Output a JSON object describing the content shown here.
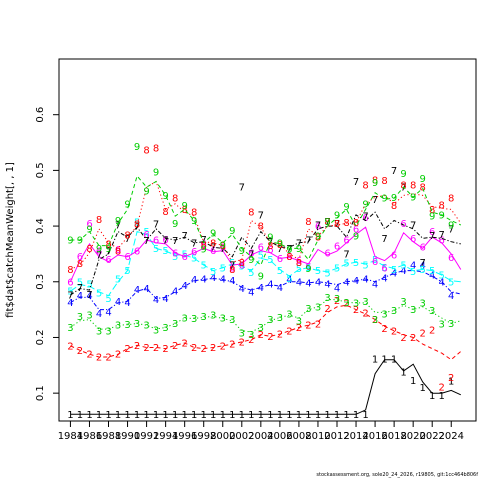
{
  "chart_data": {
    "type": "scatter",
    "title": "",
    "xlabel": "",
    "ylabel": "fit$dat$catchMeanWeight[, , 1]",
    "xlim": [
      1982.8,
      2026.6
    ],
    "ylim": [
      0.05,
      0.7
    ],
    "x_ticks": [
      "1984",
      "1986",
      "1988",
      "1990",
      "1992",
      "1994",
      "1996",
      "1998",
      "2000",
      "2002",
      "2004",
      "2006",
      "2008",
      "2010",
      "2012",
      "2014",
      "2016",
      "2018",
      "2020",
      "2022",
      "2024"
    ],
    "y_ticks": [
      "0.1",
      "0.2",
      "0.3",
      "0.4",
      "0.5",
      "0.6"
    ],
    "years": [
      1984,
      1985,
      1986,
      1987,
      1988,
      1989,
      1990,
      1991,
      1992,
      1993,
      1994,
      1995,
      1996,
      1997,
      1998,
      1999,
      2000,
      2001,
      2002,
      2003,
      2004,
      2005,
      2006,
      2007,
      2008,
      2009,
      2010,
      2011,
      2012,
      2013,
      2014,
      2015,
      2016,
      2017,
      2018,
      2019,
      2020,
      2021,
      2022,
      2023,
      2024,
      2025
    ],
    "series": [
      {
        "label": "1",
        "color": "#000000",
        "line_style": "solid",
        "observed": [
          0.062,
          0.062,
          0.062,
          0.062,
          0.062,
          0.062,
          0.062,
          0.062,
          0.062,
          0.062,
          0.062,
          0.062,
          0.062,
          0.062,
          0.062,
          0.062,
          0.062,
          0.062,
          0.062,
          0.062,
          0.062,
          0.062,
          0.062,
          0.062,
          0.062,
          0.062,
          0.062,
          0.062,
          0.062,
          0.062,
          0.062,
          0.062,
          0.161,
          0.161,
          0.161,
          0.138,
          0.123,
          0.11,
          0.096,
          0.096,
          0.122,
          null
        ],
        "fitted": [
          0.062,
          0.062,
          0.062,
          0.062,
          0.062,
          0.062,
          0.062,
          0.062,
          0.062,
          0.062,
          0.062,
          0.062,
          0.062,
          0.062,
          0.062,
          0.062,
          0.062,
          0.062,
          0.062,
          0.062,
          0.062,
          0.062,
          0.062,
          0.062,
          0.062,
          0.062,
          0.062,
          0.062,
          0.062,
          0.062,
          0.062,
          0.07,
          0.135,
          0.16,
          0.16,
          0.14,
          0.152,
          0.12,
          0.1,
          0.1,
          0.105,
          0.097
        ]
      },
      {
        "label": "2",
        "color": "#ff0000",
        "line_style": "dashed",
        "observed": [
          0.185,
          0.177,
          0.17,
          0.165,
          0.165,
          0.17,
          0.18,
          0.186,
          0.182,
          0.182,
          0.18,
          0.186,
          0.19,
          0.182,
          0.18,
          0.182,
          0.185,
          0.188,
          0.192,
          0.196,
          0.205,
          0.202,
          0.206,
          0.212,
          0.218,
          0.222,
          0.224,
          0.252,
          0.266,
          0.262,
          0.25,
          0.244,
          0.232,
          0.216,
          0.212,
          0.2,
          0.2,
          0.208,
          0.213,
          0.111,
          0.128,
          null
        ],
        "fitted": [
          0.185,
          0.177,
          0.17,
          0.165,
          0.165,
          0.17,
          0.18,
          0.186,
          0.182,
          0.182,
          0.18,
          0.186,
          0.19,
          0.182,
          0.18,
          0.182,
          0.185,
          0.188,
          0.192,
          0.196,
          0.205,
          0.202,
          0.206,
          0.212,
          0.218,
          0.222,
          0.228,
          0.245,
          0.255,
          0.258,
          0.25,
          0.242,
          0.232,
          0.22,
          0.212,
          0.205,
          0.2,
          0.188,
          0.18,
          0.172,
          0.16,
          0.175
        ]
      },
      {
        "label": "3",
        "color": "#00cd00",
        "line_style": "dotted",
        "observed": [
          0.218,
          0.238,
          0.24,
          0.212,
          0.212,
          0.222,
          0.223,
          0.225,
          0.222,
          0.213,
          0.218,
          0.225,
          0.235,
          0.234,
          0.238,
          0.24,
          0.235,
          0.232,
          0.208,
          0.205,
          0.218,
          0.232,
          0.236,
          0.242,
          0.23,
          0.252,
          0.255,
          0.272,
          0.27,
          0.263,
          0.262,
          0.265,
          0.232,
          0.242,
          0.248,
          0.265,
          0.25,
          0.262,
          0.248,
          0.224,
          0.225,
          null
        ],
        "fitted": [
          0.218,
          0.23,
          0.232,
          0.215,
          0.215,
          0.222,
          0.223,
          0.225,
          0.222,
          0.215,
          0.218,
          0.225,
          0.235,
          0.234,
          0.236,
          0.238,
          0.234,
          0.23,
          0.212,
          0.21,
          0.218,
          0.23,
          0.236,
          0.24,
          0.235,
          0.25,
          0.255,
          0.268,
          0.268,
          0.263,
          0.262,
          0.262,
          0.245,
          0.245,
          0.248,
          0.258,
          0.25,
          0.255,
          0.245,
          0.235,
          0.225,
          0.23
        ]
      },
      {
        "label": "4",
        "color": "#0000ff",
        "line_style": "dashdot",
        "observed": [
          0.263,
          0.275,
          0.275,
          0.243,
          0.246,
          0.265,
          0.263,
          0.286,
          0.288,
          0.268,
          0.27,
          0.283,
          0.293,
          0.304,
          0.305,
          0.308,
          0.305,
          0.302,
          0.288,
          0.282,
          0.29,
          0.296,
          0.29,
          0.304,
          0.3,
          0.298,
          0.3,
          0.296,
          0.289,
          0.3,
          0.302,
          0.305,
          0.296,
          0.307,
          0.316,
          0.32,
          0.33,
          0.33,
          0.312,
          0.3,
          0.275,
          null
        ],
        "fitted": [
          0.263,
          0.272,
          0.272,
          0.25,
          0.25,
          0.262,
          0.265,
          0.283,
          0.288,
          0.27,
          0.272,
          0.282,
          0.292,
          0.302,
          0.304,
          0.306,
          0.304,
          0.3,
          0.29,
          0.285,
          0.29,
          0.295,
          0.292,
          0.3,
          0.3,
          0.298,
          0.3,
          0.298,
          0.295,
          0.3,
          0.302,
          0.305,
          0.3,
          0.308,
          0.315,
          0.32,
          0.32,
          0.318,
          0.31,
          0.3,
          0.282,
          0.278
        ]
      },
      {
        "label": "5",
        "color": "#00ffff",
        "line_style": "longdash",
        "observed": [
          0.283,
          0.3,
          0.296,
          0.28,
          0.27,
          0.305,
          0.32,
          0.407,
          0.39,
          0.36,
          0.356,
          0.345,
          0.35,
          0.343,
          0.33,
          0.318,
          0.325,
          0.335,
          0.328,
          0.317,
          0.348,
          0.34,
          0.32,
          0.306,
          0.324,
          0.326,
          0.32,
          0.316,
          0.325,
          0.334,
          0.335,
          0.33,
          0.34,
          0.326,
          0.322,
          0.33,
          0.318,
          0.322,
          0.32,
          0.312,
          0.3,
          null
        ],
        "fitted": [
          0.283,
          0.295,
          0.292,
          0.282,
          0.275,
          0.3,
          0.32,
          0.39,
          0.385,
          0.36,
          0.355,
          0.348,
          0.348,
          0.342,
          0.33,
          0.32,
          0.325,
          0.332,
          0.328,
          0.32,
          0.342,
          0.338,
          0.322,
          0.31,
          0.322,
          0.325,
          0.32,
          0.318,
          0.324,
          0.332,
          0.335,
          0.332,
          0.338,
          0.328,
          0.324,
          0.33,
          0.32,
          0.322,
          0.32,
          0.312,
          0.302,
          0.3
        ]
      },
      {
        "label": "6",
        "color": "#ff00ff",
        "line_style": "solid",
        "observed": [
          0.3,
          0.345,
          0.405,
          0.355,
          0.34,
          0.358,
          0.345,
          0.355,
          0.385,
          0.375,
          0.376,
          0.352,
          0.345,
          0.354,
          0.368,
          0.356,
          0.362,
          0.325,
          0.33,
          0.352,
          0.362,
          0.358,
          0.342,
          0.345,
          0.338,
          0.327,
          0.4,
          0.352,
          0.364,
          0.375,
          0.395,
          0.415,
          0.336,
          0.325,
          0.348,
          0.405,
          0.378,
          0.362,
          0.39,
          0.375,
          0.344,
          null
        ],
        "fitted": [
          0.3,
          0.338,
          0.368,
          0.345,
          0.336,
          0.348,
          0.345,
          0.355,
          0.375,
          0.37,
          0.368,
          0.352,
          0.345,
          0.352,
          0.36,
          0.354,
          0.356,
          0.33,
          0.332,
          0.348,
          0.356,
          0.352,
          0.342,
          0.344,
          0.338,
          0.332,
          0.358,
          0.348,
          0.355,
          0.37,
          0.385,
          0.398,
          0.345,
          0.338,
          0.352,
          0.388,
          0.372,
          0.36,
          0.38,
          0.37,
          0.35,
          0.322
        ]
      },
      {
        "label": "7",
        "color": "#000000",
        "line_style": "dashdot",
        "observed": [
          0.276,
          0.29,
          0.277,
          0.348,
          0.355,
          0.402,
          0.378,
          0.4,
          0.374,
          0.404,
          0.375,
          0.374,
          0.383,
          0.37,
          0.376,
          0.362,
          0.36,
          0.33,
          0.47,
          0.35,
          0.42,
          0.372,
          0.36,
          0.36,
          0.37,
          0.375,
          0.402,
          0.408,
          0.405,
          0.35,
          0.48,
          0.418,
          0.448,
          0.378,
          0.5,
          0.47,
          0.402,
          0.335,
          0.383,
          0.385,
          0.395,
          null
        ],
        "fitted": [
          0.276,
          0.288,
          0.285,
          0.34,
          0.35,
          0.39,
          0.38,
          0.398,
          0.375,
          0.395,
          0.378,
          0.375,
          0.38,
          0.37,
          0.372,
          0.362,
          0.36,
          0.345,
          0.38,
          0.36,
          0.39,
          0.372,
          0.362,
          0.362,
          0.37,
          0.372,
          0.395,
          0.4,
          0.4,
          0.38,
          0.42,
          0.41,
          0.425,
          0.395,
          0.41,
          0.402,
          0.395,
          0.378,
          0.38,
          0.378,
          0.372,
          0.368
        ]
      },
      {
        "label": "8",
        "color": "#ff0000",
        "line_style": "dotted",
        "observed": [
          0.322,
          0.333,
          0.36,
          0.412,
          0.368,
          0.355,
          0.384,
          0.404,
          0.537,
          0.54,
          0.426,
          0.45,
          0.43,
          0.425,
          0.366,
          0.37,
          0.365,
          0.322,
          0.335,
          0.425,
          0.4,
          0.365,
          0.367,
          0.345,
          0.335,
          0.408,
          0.38,
          0.408,
          0.405,
          0.406,
          0.406,
          0.474,
          0.483,
          0.482,
          0.437,
          0.474,
          0.474,
          0.47,
          0.43,
          0.438,
          0.45,
          null
        ],
        "fitted": [
          0.322,
          0.33,
          0.352,
          0.395,
          0.37,
          0.36,
          0.38,
          0.4,
          0.47,
          0.48,
          0.43,
          0.44,
          0.425,
          0.418,
          0.372,
          0.37,
          0.365,
          0.335,
          0.34,
          0.41,
          0.398,
          0.37,
          0.368,
          0.35,
          0.34,
          0.395,
          0.382,
          0.4,
          0.402,
          0.405,
          0.406,
          0.44,
          0.452,
          0.455,
          0.44,
          0.455,
          0.458,
          0.455,
          0.435,
          0.432,
          0.43,
          0.405
        ]
      },
      {
        "label": "9",
        "color": "#00cd00",
        "line_style": "dashed",
        "observed": [
          0.375,
          0.375,
          0.395,
          0.36,
          0.36,
          0.41,
          0.44,
          0.543,
          0.463,
          0.497,
          0.455,
          0.405,
          0.437,
          0.41,
          0.359,
          0.388,
          0.366,
          0.392,
          0.356,
          0.34,
          0.31,
          0.38,
          0.37,
          0.358,
          0.36,
          0.324,
          0.382,
          0.408,
          0.42,
          0.435,
          0.382,
          0.44,
          0.478,
          0.45,
          0.451,
          0.494,
          0.452,
          0.485,
          0.418,
          0.42,
          0.402,
          null
        ],
        "fitted": [
          0.375,
          0.375,
          0.39,
          0.365,
          0.365,
          0.405,
          0.43,
          0.49,
          0.47,
          0.48,
          0.455,
          0.418,
          0.43,
          0.41,
          0.37,
          0.385,
          0.37,
          0.385,
          0.36,
          0.345,
          0.33,
          0.372,
          0.368,
          0.36,
          0.36,
          0.34,
          0.375,
          0.4,
          0.415,
          0.43,
          0.4,
          0.43,
          0.46,
          0.448,
          0.45,
          0.47,
          0.452,
          0.468,
          0.425,
          0.42,
          0.41,
          0.402
        ]
      }
    ]
  },
  "footer_text": "stockassessment.org, sole20_24_2026, r19805, git:1cc464b806f"
}
